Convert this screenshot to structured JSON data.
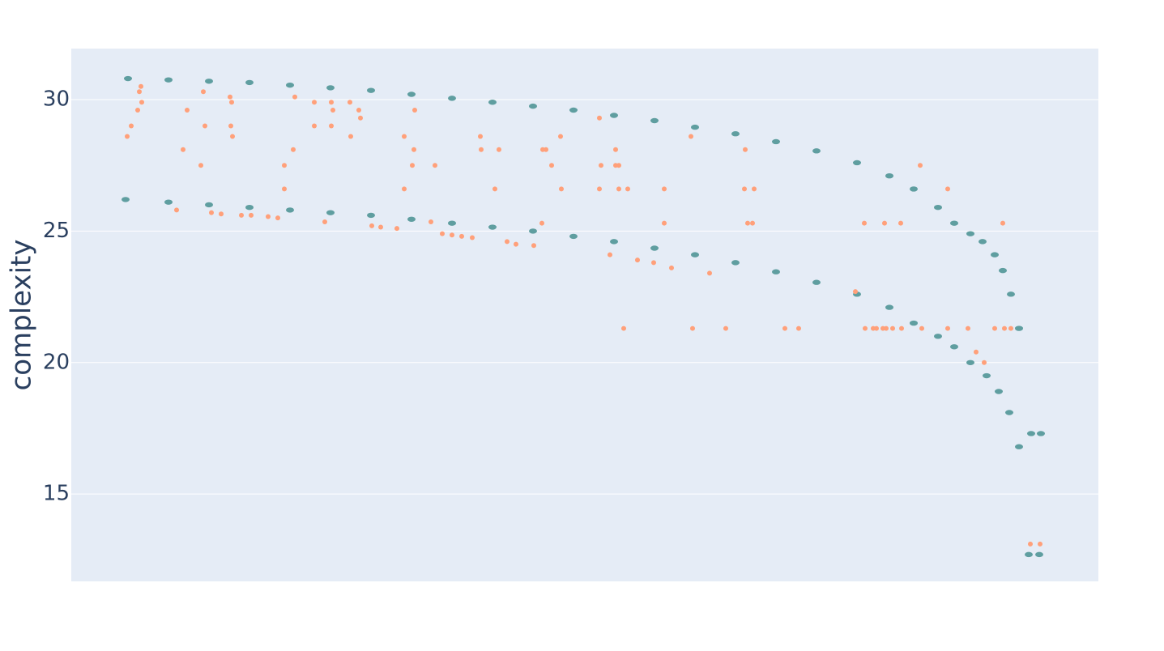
{
  "chart_data": {
    "type": "scatter",
    "y_label": "complexity",
    "xlim": [
      0,
      1268
    ],
    "ylim": [
      11.68,
      31.94
    ],
    "yticks": [
      15,
      20,
      25,
      30
    ],
    "grid": true,
    "series": [
      {
        "color": "#5f9ea0",
        "x": [
          70,
          120,
          170,
          220,
          270,
          320,
          370,
          420,
          470,
          520,
          570,
          620,
          670,
          720,
          770,
          820,
          870,
          920,
          970,
          1010,
          1040,
          1070,
          1090,
          1110,
          1125,
          1140,
          1150,
          1160,
          1170,
          1185,
          1197,
          67,
          120,
          170,
          220,
          270,
          320,
          370,
          420,
          470,
          520,
          570,
          620,
          670,
          720,
          770,
          820,
          870,
          920,
          970,
          1010,
          1040,
          1070,
          1090,
          1110,
          1130,
          1145,
          1158,
          1170,
          1182,
          1195
        ],
        "values": [
          30.8,
          30.75,
          30.7,
          30.65,
          30.55,
          30.45,
          30.35,
          30.2,
          30.05,
          29.9,
          29.75,
          29.6,
          29.4,
          29.2,
          28.95,
          28.7,
          28.4,
          28.05,
          27.6,
          27.1,
          26.6,
          25.9,
          25.3,
          24.9,
          24.6,
          24.1,
          23.5,
          22.6,
          21.3,
          17.3,
          17.3,
          26.2,
          26.1,
          26.0,
          25.9,
          25.8,
          25.7,
          25.6,
          25.45,
          25.3,
          25.15,
          25.0,
          24.8,
          24.6,
          24.35,
          24.1,
          23.8,
          23.45,
          23.05,
          22.6,
          22.1,
          21.5,
          21.0,
          20.6,
          20.0,
          19.5,
          18.9,
          18.1,
          16.8,
          12.7,
          12.7
        ]
      },
      {
        "color": "#ffa07a",
        "x": [
          69,
          74,
          82,
          84,
          86,
          87,
          130,
          138,
          143,
          160,
          163,
          165,
          173,
          185,
          196,
          197,
          198,
          199,
          210,
          222,
          243,
          255,
          263,
          263,
          274,
          276,
          300,
          300,
          313,
          321,
          321,
          323,
          344,
          345,
          355,
          357,
          371,
          382,
          402,
          411,
          411,
          421,
          423,
          424,
          444,
          449,
          458,
          470,
          482,
          495,
          505,
          506,
          523,
          528,
          538,
          549,
          571,
          581,
          582,
          586,
          593,
          604,
          605,
          652,
          652,
          654,
          665,
          672,
          672,
          676,
          676,
          682,
          687,
          699,
          719,
          732,
          732,
          741,
          765,
          767,
          788,
          808,
          831,
          832,
          835,
          841,
          843,
          881,
          898,
          968,
          979,
          980,
          990,
          994,
          1002,
          1004,
          1006,
          1014,
          1024,
          1025,
          1048,
          1050,
          1082,
          1082,
          1107,
          1117,
          1127,
          1140,
          1150,
          1152,
          1160,
          1184,
          1196
        ],
        "values": [
          28.6,
          29.0,
          29.6,
          30.3,
          30.5,
          29.9,
          25.8,
          28.1,
          29.6,
          27.5,
          30.3,
          29.0,
          25.7,
          25.65,
          30.1,
          29.0,
          29.9,
          28.6,
          25.6,
          25.6,
          25.55,
          25.5,
          27.5,
          26.6,
          28.1,
          30.1,
          29.9,
          29.0,
          25.35,
          29.9,
          29.0,
          29.6,
          29.9,
          28.6,
          29.6,
          29.3,
          25.2,
          25.15,
          25.1,
          28.6,
          26.6,
          27.5,
          28.1,
          29.6,
          25.35,
          27.5,
          24.9,
          24.85,
          24.8,
          24.75,
          28.6,
          28.1,
          26.6,
          28.1,
          24.6,
          24.5,
          24.45,
          25.3,
          28.1,
          28.1,
          27.5,
          28.6,
          26.6,
          29.3,
          26.6,
          27.5,
          24.1,
          28.1,
          27.5,
          27.5,
          26.6,
          21.3,
          26.6,
          23.9,
          23.8,
          26.6,
          25.3,
          23.6,
          28.6,
          21.3,
          23.4,
          21.3,
          26.6,
          28.1,
          25.3,
          25.3,
          26.6,
          21.3,
          21.3,
          22.7,
          25.3,
          21.3,
          21.3,
          21.3,
          21.3,
          25.3,
          21.3,
          21.3,
          25.3,
          21.3,
          27.5,
          21.3,
          26.6,
          21.3,
          21.3,
          20.4,
          20.0,
          21.3,
          25.3,
          21.3,
          21.3,
          13.1,
          13.1
        ]
      }
    ]
  }
}
